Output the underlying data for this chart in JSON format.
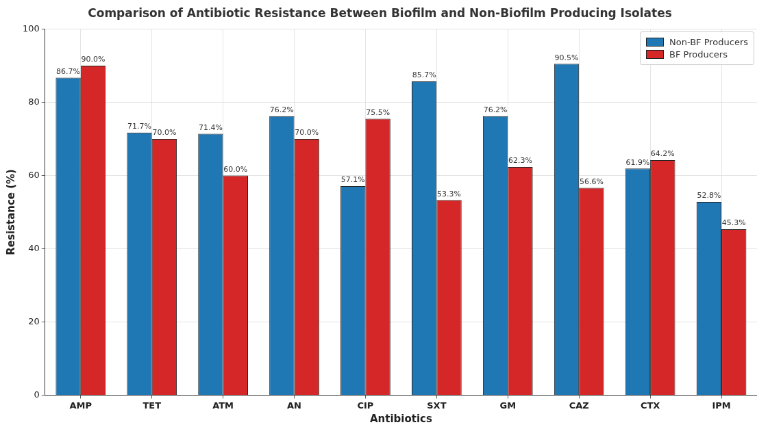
{
  "chart_data": {
    "type": "bar",
    "title": "Comparison of Antibiotic Resistance Between Biofilm and Non-Biofilm Producing Isolates",
    "xlabel": "Antibiotics",
    "ylabel": "Resistance (%)",
    "categories": [
      "AMP",
      "TET",
      "ATM",
      "AN",
      "CIP",
      "SXT",
      "GM",
      "CAZ",
      "CTX",
      "IPM"
    ],
    "series": [
      {
        "name": "Non-BF Producers",
        "color": "#1f77b4",
        "values": [
          86.7,
          71.7,
          71.4,
          76.2,
          57.1,
          85.7,
          76.2,
          90.5,
          61.9,
          52.8
        ],
        "value_labels": [
          "86.7%",
          "71.7%",
          "71.4%",
          "76.2%",
          "57.1%",
          "85.7%",
          "76.2%",
          "90.5%",
          "61.9%",
          "52.8%"
        ]
      },
      {
        "name": "BF Producers",
        "color": "#d62728",
        "values": [
          90.0,
          70.0,
          60.0,
          70.0,
          75.5,
          53.3,
          62.3,
          56.6,
          64.2,
          45.3
        ],
        "value_labels": [
          "90.0%",
          "70.0%",
          "60.0%",
          "70.0%",
          "75.5%",
          "53.3%",
          "62.3%",
          "56.6%",
          "64.2%",
          "45.3%"
        ]
      }
    ],
    "ylim": [
      0,
      100
    ],
    "yticks": [
      0,
      20,
      40,
      60,
      80,
      100
    ],
    "grid": true,
    "legend": "top right"
  }
}
